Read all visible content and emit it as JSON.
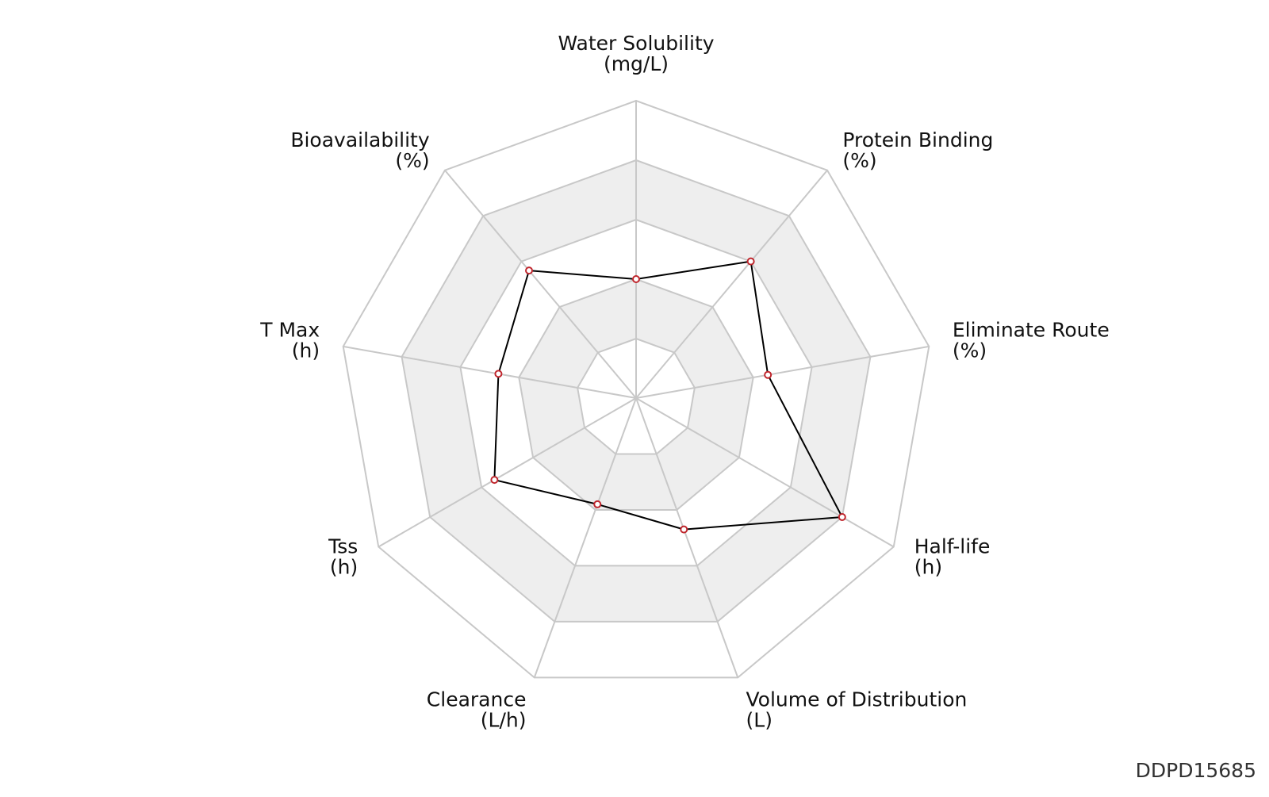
{
  "chart_data": {
    "type": "radar",
    "axes": [
      {
        "name": "Water Solubility",
        "unit": "(mg/L)"
      },
      {
        "name": "Protein Binding",
        "unit": "(%)"
      },
      {
        "name": "Eliminate Route",
        "unit": "(%)"
      },
      {
        "name": "Half-life",
        "unit": "(h)"
      },
      {
        "name": "Volume of Distribution",
        "unit": "(L)"
      },
      {
        "name": "Clearance",
        "unit": "(L/h)"
      },
      {
        "name": "Tss",
        "unit": "(h)"
      },
      {
        "name": "T Max",
        "unit": "(h)"
      },
      {
        "name": "Bioavailability",
        "unit": "(%)"
      }
    ],
    "rings": 5,
    "range": [
      0,
      1
    ],
    "series": [
      {
        "values": [
          0.4,
          0.6,
          0.45,
          0.8,
          0.47,
          0.38,
          0.55,
          0.47,
          0.56
        ]
      }
    ],
    "colors": {
      "line": "#000000",
      "marker_edge": "#c0262d",
      "marker_fill": "#ffffff",
      "band_fill": "#eeeeee",
      "grid": "#c8c8c8"
    },
    "grid": true
  },
  "watermark": "DDPD15685"
}
